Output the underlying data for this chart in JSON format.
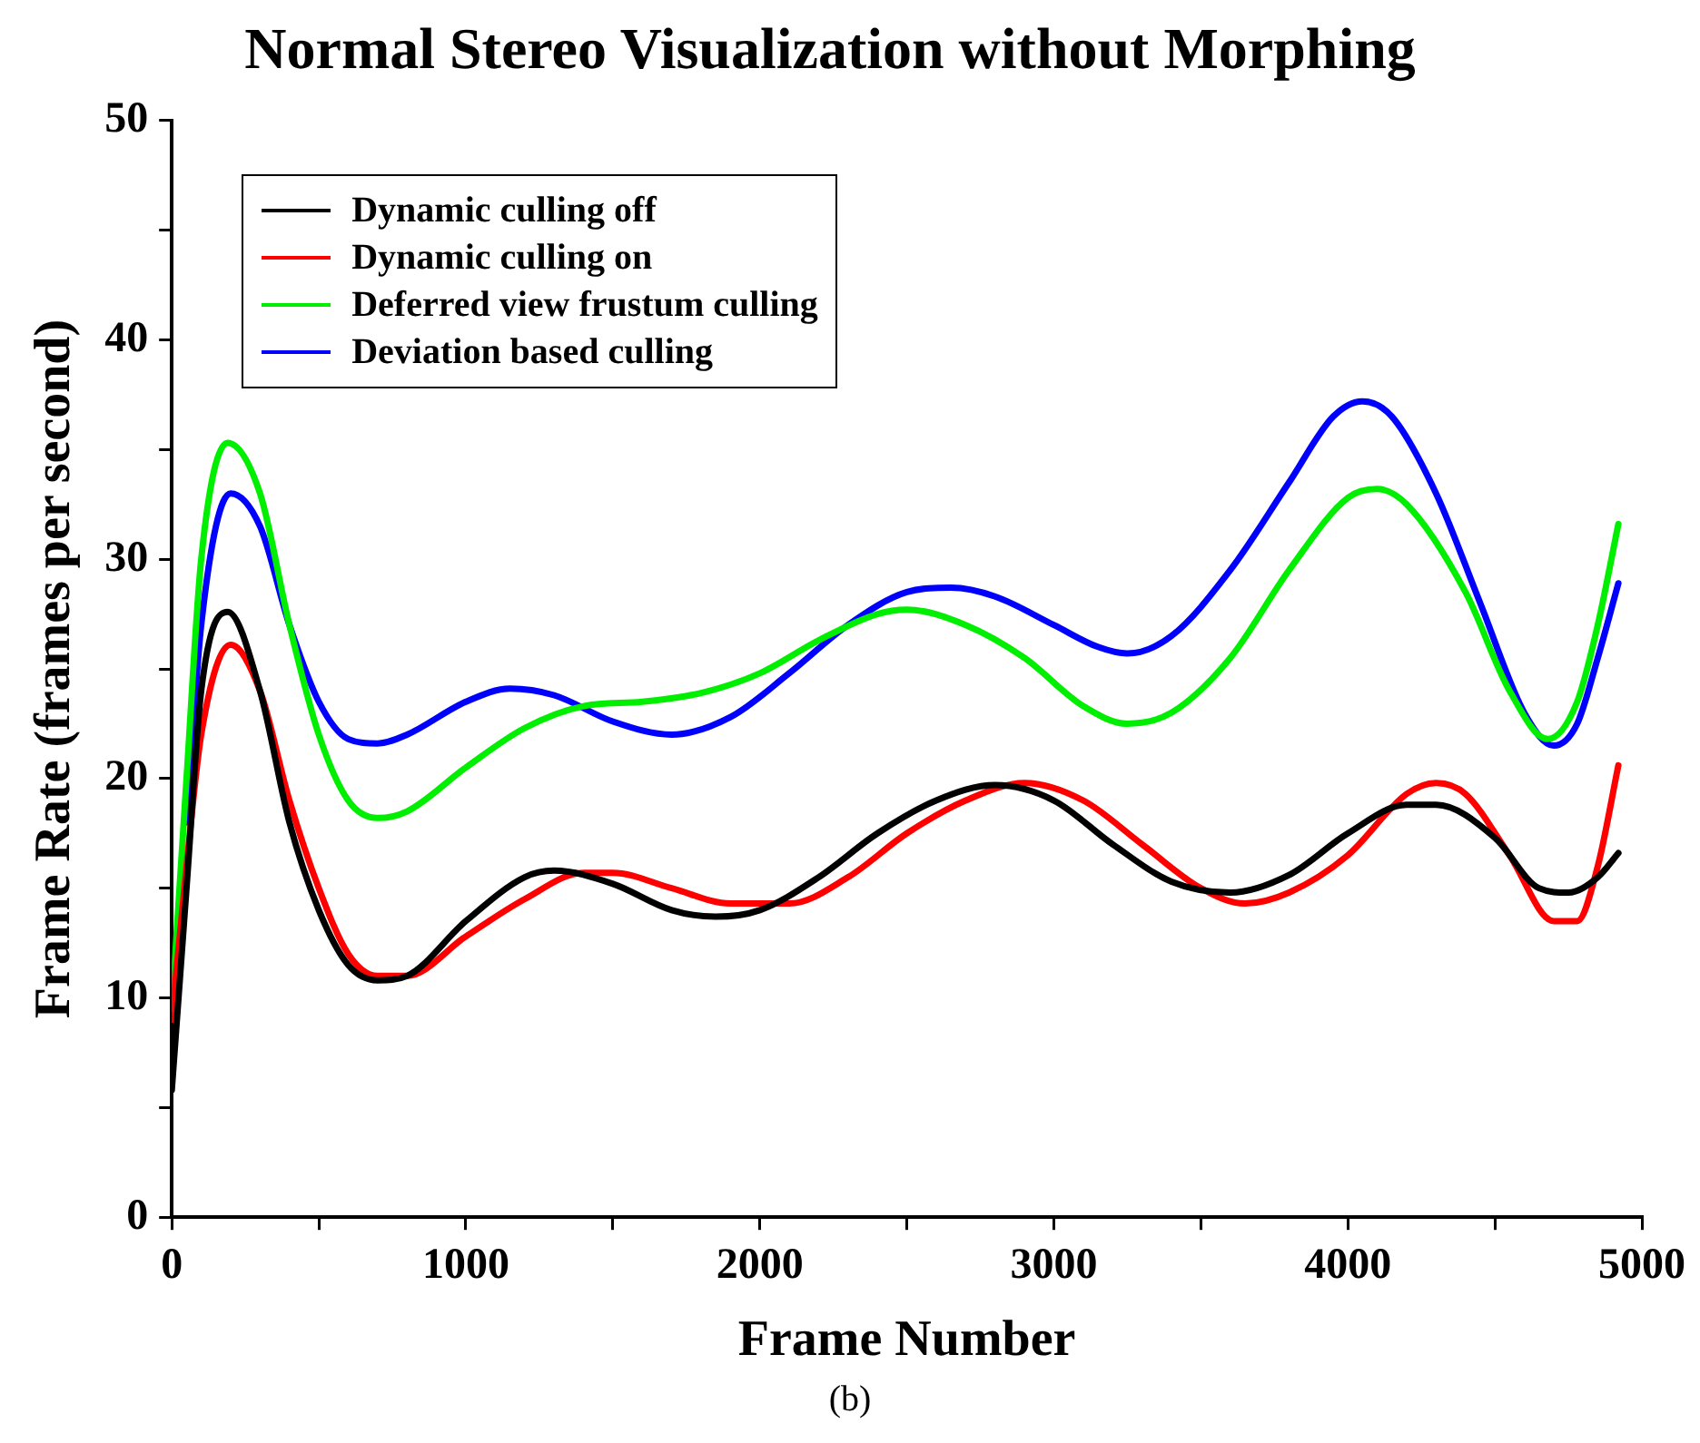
{
  "chart_data": {
    "type": "line",
    "title": "Normal Stereo Visualization without Morphing",
    "xlabel": "Frame Number",
    "ylabel": "Frame Rate (frames per second)",
    "annotations": [
      "(b)"
    ],
    "xlim": [
      0,
      5000
    ],
    "xticks": [
      0,
      {
        "value": 500,
        "label": null
      },
      1000,
      {
        "value": 1500,
        "label": null
      },
      2000,
      {
        "value": 2500,
        "label": null
      },
      3000,
      {
        "value": 3500,
        "label": null
      },
      4000,
      {
        "value": 4500,
        "label": null
      },
      5000
    ],
    "ylim": [
      0,
      50
    ],
    "yticks": [
      0,
      {
        "value": 5,
        "label": null
      },
      10,
      {
        "value": 15,
        "label": null
      },
      20,
      {
        "value": 25,
        "label": null
      },
      30,
      {
        "value": 35,
        "label": null
      },
      40,
      {
        "value": 45,
        "label": null
      },
      50
    ],
    "grid": false,
    "legend": "top left",
    "marker": "none",
    "line_style": "solid",
    "series": [
      {
        "name": "Dynamic culling off",
        "color": "#000000",
        "x": [
          0,
          50,
          100,
          190,
          300,
          400,
          500,
          600,
          700,
          800,
          1000,
          1200,
          1300,
          1500,
          1700,
          1850,
          2000,
          2200,
          2400,
          2600,
          2800,
          3000,
          3200,
          3400,
          3600,
          3800,
          4000,
          4200,
          4300,
          4500,
          4650,
          4750,
          4850,
          4920
        ],
        "values": [
          5.8,
          15,
          24,
          27.6,
          24,
          18,
          14,
          11.5,
          10.8,
          11,
          13.5,
          15.5,
          15.8,
          15.2,
          14,
          13.7,
          14,
          15.5,
          17.5,
          19,
          19.7,
          19,
          17,
          15.3,
          14.8,
          15.6,
          17.5,
          18.8,
          18.8,
          17.3,
          15,
          14.8,
          15.5,
          16.6
        ]
      },
      {
        "name": "Dynamic culling on",
        "color": "#ff0000",
        "x": [
          0,
          50,
          100,
          200,
          300,
          400,
          500,
          600,
          700,
          800,
          1000,
          1200,
          1400,
          1500,
          1700,
          1900,
          2100,
          2300,
          2500,
          2700,
          2900,
          3100,
          3300,
          3500,
          3650,
          3800,
          4000,
          4200,
          4300,
          4400,
          4550,
          4700,
          4780,
          4850,
          4920
        ],
        "values": [
          9,
          16,
          22,
          26.1,
          24,
          19,
          15,
          12,
          11,
          11,
          12.8,
          14.5,
          15.7,
          15.7,
          15,
          14.3,
          14.3,
          15.5,
          17.5,
          19,
          19.8,
          19,
          17,
          15,
          14.3,
          14.8,
          16.5,
          19.3,
          19.8,
          19.3,
          16.5,
          13.5,
          13.5,
          16,
          20.6
        ]
      },
      {
        "name": "Deferred view frustum culling",
        "color": "#00ee00",
        "x": [
          0,
          50,
          100,
          190,
          300,
          400,
          500,
          600,
          700,
          800,
          1000,
          1200,
          1400,
          1600,
          1800,
          2000,
          2200,
          2400,
          2500,
          2700,
          2900,
          3100,
          3250,
          3400,
          3600,
          3800,
          4000,
          4100,
          4200,
          4400,
          4550,
          4680,
          4780,
          4850,
          4920
        ],
        "values": [
          9.5,
          20,
          30,
          35.3,
          33,
          27,
          22,
          19,
          18.2,
          18.5,
          20.5,
          22.3,
          23.3,
          23.5,
          23.9,
          24.8,
          26.3,
          27.5,
          27.7,
          27,
          25.5,
          23.3,
          22.5,
          23,
          25.5,
          29.5,
          32.8,
          33.2,
          32.5,
          28.5,
          24,
          21.8,
          23.5,
          27,
          31.6
        ]
      },
      {
        "name": "Deviation based culling",
        "color": "#0000ff",
        "x": [
          50,
          100,
          200,
          300,
          400,
          500,
          600,
          700,
          800,
          1000,
          1150,
          1300,
          1500,
          1700,
          1900,
          2100,
          2300,
          2500,
          2650,
          2800,
          3000,
          3150,
          3250,
          3400,
          3600,
          3800,
          3950,
          4050,
          4150,
          4300,
          4450,
          4600,
          4700,
          4780,
          4850,
          4920
        ],
        "values": [
          18,
          27,
          33,
          31.5,
          27,
          23.5,
          21.8,
          21.6,
          22,
          23.5,
          24.1,
          23.8,
          22.6,
          22,
          22.8,
          24.8,
          27,
          28.5,
          28.7,
          28.3,
          27,
          26,
          25.7,
          26.5,
          29.5,
          33.5,
          36.5,
          37.2,
          36.5,
          33,
          28,
          23,
          21.5,
          22.5,
          25.5,
          28.9
        ]
      }
    ]
  }
}
